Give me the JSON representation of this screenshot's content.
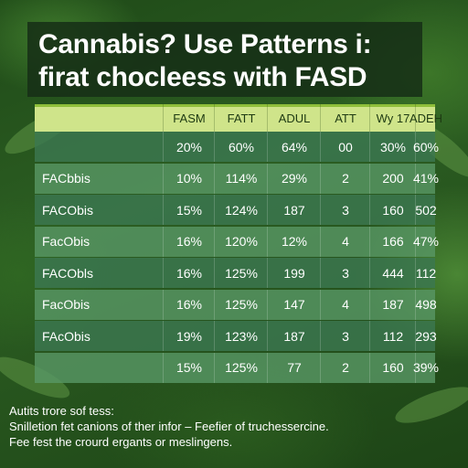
{
  "title_line1": "Cannabis? Use Patterns i:",
  "title_line2": "firat chocleess with FASD",
  "chart_data": {
    "type": "table",
    "columns": [
      "",
      "FASM",
      "FATT",
      "ADUL",
      "ATT",
      "Wy 17",
      "ADEH"
    ],
    "rows": [
      [
        "",
        "20%",
        "60%",
        "64%",
        "00",
        "30%",
        "60%"
      ],
      [
        "FACbbis",
        "10%",
        "114%",
        "29%",
        "2",
        "200",
        "41%"
      ],
      [
        "FACObis",
        "15%",
        "124%",
        "187",
        "3",
        "160",
        "502"
      ],
      [
        "FacObis",
        "16%",
        "120%",
        "12%",
        "4",
        "166",
        "47%"
      ],
      [
        "FACObls",
        "16%",
        "125%",
        "199",
        "3",
        "444",
        "112"
      ],
      [
        "FacObis",
        "16%",
        "125%",
        "147",
        "4",
        "187",
        "498"
      ],
      [
        "FAcObis",
        "19%",
        "123%",
        "187",
        "3",
        "112",
        "293"
      ],
      [
        "",
        "15%",
        "125%",
        "77",
        "2",
        "160",
        "39%"
      ]
    ]
  },
  "footer": [
    "Autits trore sof tess:",
    "Snilletion fet canions of ther infor – Feefier of truchessercine.",
    "Fee fest the crourd ergants or meslingens."
  ]
}
